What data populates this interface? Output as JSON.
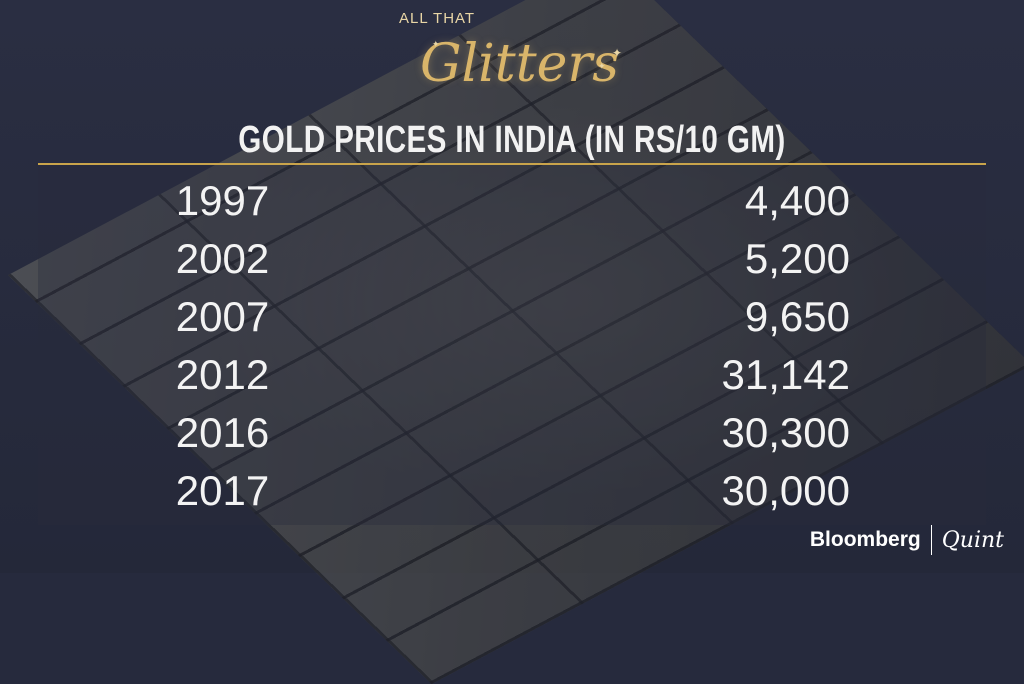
{
  "header": {
    "kicker": "ALL THAT",
    "script_title": "Glitters"
  },
  "footer": {
    "brand": "Bloomberg",
    "brand2": "Quint"
  },
  "colors": {
    "accent_gold": "#c9a44b",
    "background": "#262a3d",
    "text": "#f3f3f3"
  },
  "chart_data": {
    "type": "table",
    "title": "GOLD PRICES IN INDIA (IN RS/10 GM)",
    "rows": [
      {
        "year": "1997",
        "price": "4,400"
      },
      {
        "year": "2002",
        "price": "5,200"
      },
      {
        "year": "2007",
        "price": "9,650"
      },
      {
        "year": "2012",
        "price": "31,142"
      },
      {
        "year": "2016",
        "price": "30,300"
      },
      {
        "year": "2017",
        "price": "30,000"
      }
    ]
  }
}
